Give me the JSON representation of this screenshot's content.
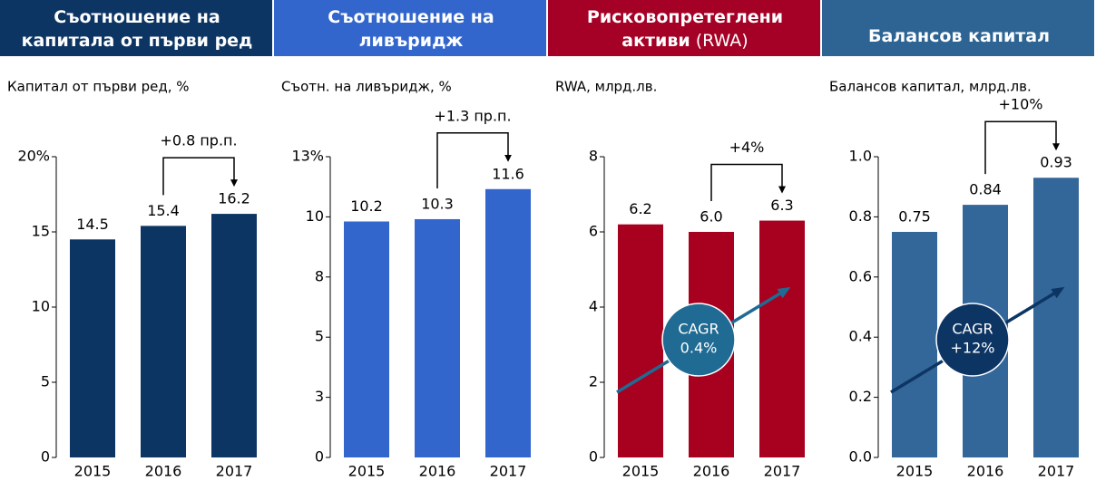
{
  "chart_data": [
    {
      "type": "bar",
      "title": [
        "Съотношение на",
        "капитала от първи ред"
      ],
      "header_color": "#0d3564",
      "subtitle": "Капитал от първи ред, %",
      "categories": [
        "2015",
        "2016",
        "2017"
      ],
      "values": [
        14.5,
        15.4,
        16.2
      ],
      "color": "#0d3564",
      "ylim": [
        0,
        20
      ],
      "yticks": [
        0,
        5,
        10,
        15,
        {
          "value": 20,
          "label": "20%"
        }
      ],
      "annotation": "+0.8 пр.п."
    },
    {
      "type": "bar",
      "title": [
        "Съотношение на",
        "ливъридж"
      ],
      "header_color": "#3366cc",
      "subtitle": "Съотн. на ливъридж, %",
      "categories": [
        "2015",
        "2016",
        "2017"
      ],
      "values": [
        10.2,
        10.3,
        11.6
      ],
      "color": "#3366cc",
      "ylim": [
        0,
        13
      ],
      "yticks": [
        0,
        {
          "value": 2.6,
          "label": "3"
        },
        {
          "value": 5.2,
          "label": "5"
        },
        {
          "value": 7.8,
          "label": "8"
        },
        {
          "value": 10.4,
          "label": "10"
        },
        {
          "value": 13,
          "label": "13%"
        }
      ],
      "annotation": "+1.3 пр.п."
    },
    {
      "type": "bar",
      "title": [
        "Рисковопретеглени",
        "активи"
      ],
      "title_suffix": "(RWA)",
      "header_color": "#a50026",
      "subtitle": "RWA, млрд.лв.",
      "categories": [
        "2015",
        "2016",
        "2017"
      ],
      "values": [
        6.2,
        6.0,
        6.3
      ],
      "value_labels": [
        "6.2",
        "6.0",
        "6.3"
      ],
      "color": "#a8001f",
      "ylim": [
        0,
        8
      ],
      "yticks": [
        0,
        2,
        4,
        6,
        8
      ],
      "annotation": "+4%",
      "cagr": {
        "label": "CAGR",
        "rate": "0.4%",
        "color": "#1f6b93"
      }
    },
    {
      "type": "bar",
      "title": [
        "Балансов капитал"
      ],
      "header_color": "#2e6494",
      "subtitle": "Балансов капитал, млрд.лв.",
      "categories": [
        "2015",
        "2016",
        "2017"
      ],
      "values": [
        0.75,
        0.84,
        0.93
      ],
      "color": "#336699",
      "ylim": [
        0,
        1
      ],
      "yticks": [
        {
          "value": 0,
          "label": "0.0"
        },
        0.2,
        0.4,
        0.6,
        0.8,
        {
          "value": 1,
          "label": "1.0"
        }
      ],
      "annotation": "+10%",
      "cagr": {
        "label": "CAGR",
        "rate": "+12%",
        "color": "#0d3564"
      }
    }
  ]
}
